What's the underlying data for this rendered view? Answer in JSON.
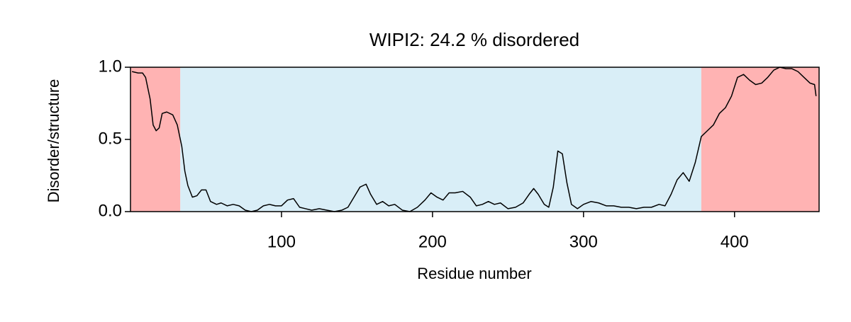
{
  "chart_data": {
    "type": "line",
    "title": "WIPI2: 24.2 % disordered",
    "xlabel": "Residue number",
    "ylabel": "Disorder/structure",
    "x": [
      1,
      5,
      8,
      10,
      13,
      15,
      17,
      19,
      21,
      24,
      28,
      31,
      34,
      36,
      38,
      41,
      44,
      47,
      50,
      53,
      57,
      60,
      64,
      68,
      72,
      76,
      80,
      84,
      88,
      92,
      96,
      100,
      104,
      108,
      112,
      116,
      120,
      125,
      130,
      135,
      140,
      144,
      148,
      152,
      156,
      159,
      163,
      167,
      171,
      175,
      180,
      185,
      190,
      195,
      199,
      203,
      207,
      211,
      215,
      220,
      225,
      229,
      233,
      237,
      241,
      245,
      250,
      255,
      260,
      264,
      267,
      270,
      274,
      277,
      280,
      283,
      286,
      289,
      292,
      296,
      300,
      305,
      310,
      315,
      320,
      325,
      330,
      335,
      340,
      345,
      350,
      354,
      358,
      362,
      366,
      370,
      374,
      378,
      382,
      386,
      390,
      394,
      398,
      402,
      406,
      410,
      414,
      418,
      422,
      426,
      430,
      434,
      438,
      442,
      446,
      450,
      453,
      454
    ],
    "series": [
      {
        "name": "disorder",
        "color": "#000000",
        "values": [
          0.97,
          0.96,
          0.96,
          0.93,
          0.78,
          0.6,
          0.56,
          0.58,
          0.68,
          0.69,
          0.67,
          0.6,
          0.45,
          0.28,
          0.18,
          0.1,
          0.11,
          0.15,
          0.15,
          0.07,
          0.05,
          0.06,
          0.04,
          0.05,
          0.04,
          0.01,
          0.0,
          0.01,
          0.04,
          0.05,
          0.04,
          0.04,
          0.08,
          0.09,
          0.03,
          0.02,
          0.01,
          0.02,
          0.01,
          0.0,
          0.01,
          0.03,
          0.1,
          0.17,
          0.19,
          0.12,
          0.05,
          0.07,
          0.04,
          0.05,
          0.01,
          0.0,
          0.03,
          0.08,
          0.13,
          0.1,
          0.08,
          0.13,
          0.13,
          0.14,
          0.1,
          0.04,
          0.05,
          0.07,
          0.05,
          0.06,
          0.02,
          0.03,
          0.06,
          0.12,
          0.16,
          0.12,
          0.05,
          0.03,
          0.17,
          0.42,
          0.4,
          0.2,
          0.05,
          0.02,
          0.05,
          0.07,
          0.06,
          0.04,
          0.04,
          0.03,
          0.03,
          0.02,
          0.03,
          0.03,
          0.05,
          0.04,
          0.12,
          0.22,
          0.27,
          0.21,
          0.34,
          0.52,
          0.56,
          0.6,
          0.68,
          0.72,
          0.8,
          0.93,
          0.95,
          0.91,
          0.88,
          0.89,
          0.93,
          0.98,
          1.0,
          0.99,
          0.99,
          0.97,
          0.93,
          0.89,
          0.88,
          0.8
        ]
      }
    ],
    "regions": [
      {
        "start": 0,
        "end": 33,
        "color": "#ffb3b3"
      },
      {
        "start": 33,
        "end": 378,
        "color": "#d9eef7"
      },
      {
        "start": 378,
        "end": 456,
        "color": "#ffb3b3"
      }
    ],
    "xlim": [
      0,
      456
    ],
    "ylim": [
      0,
      1
    ],
    "xticks": [
      100,
      200,
      300,
      400
    ],
    "yticks": [
      {
        "value": 0,
        "label": "0.0"
      },
      0.5,
      {
        "value": 1,
        "label": "1.0"
      }
    ]
  }
}
